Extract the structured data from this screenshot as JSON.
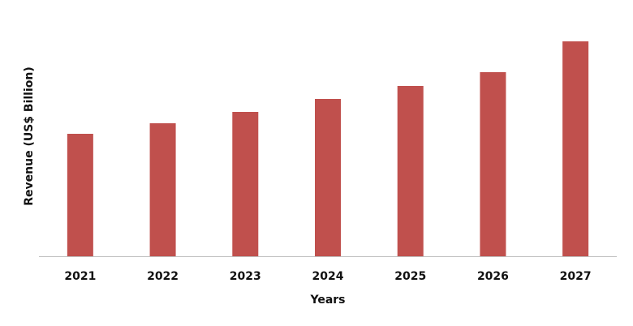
{
  "chart_data": {
    "type": "bar",
    "x_label": "Years",
    "y_label": "Revenue (US$ Billion)",
    "categories": [
      "2021",
      "2022",
      "2023",
      "2024",
      "2025",
      "2026",
      "2027"
    ],
    "values": [
      151,
      164,
      178,
      194,
      210,
      227,
      265
    ],
    "color": "#c0504d",
    "ylim": [
      0,
      280
    ],
    "grid": false
  }
}
